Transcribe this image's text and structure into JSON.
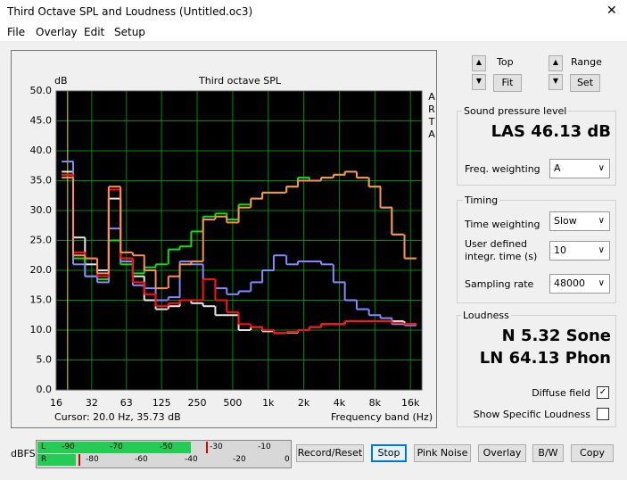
{
  "window": {
    "title": "Third Octave SPL and Loudness (Untitled.oc3)"
  },
  "menu": [
    "File",
    "Overlay",
    "Edit",
    "Setup"
  ],
  "chart_data": {
    "type": "step",
    "title": "Third octave SPL",
    "y_label": "dB",
    "x_label": "Frequency band (Hz)",
    "side_label": [
      "A",
      "R",
      "T",
      "A"
    ],
    "cursor": "Cursor:    20.0 Hz, 35.73 dB",
    "x_scale": "log",
    "grid": true,
    "background": "#000000",
    "grid_color": "#008a00",
    "cursor_color": "#e8e800",
    "x": [
      20,
      25,
      31.5,
      40,
      50,
      63,
      80,
      100,
      125,
      160,
      200,
      250,
      315,
      400,
      500,
      630,
      800,
      1000,
      1250,
      1600,
      2000,
      2500,
      3150,
      4000,
      5000,
      6300,
      8000,
      10000,
      12500,
      16000
    ],
    "xlim": [
      16,
      20000
    ],
    "xticks": [
      16,
      32,
      63,
      125,
      250,
      500,
      {
        "value": 1000,
        "label": "1k"
      },
      {
        "value": 2000,
        "label": "2k"
      },
      {
        "value": 4000,
        "label": "4k"
      },
      {
        "value": 8000,
        "label": "8k"
      },
      {
        "value": 16000,
        "label": "16k"
      }
    ],
    "ylim": [
      0,
      50
    ],
    "yticks": [
      {
        "value": 0,
        "label": "0.0"
      },
      {
        "value": 5,
        "label": "5.0"
      },
      {
        "value": 10,
        "label": "10.0"
      },
      {
        "value": 15,
        "label": "15.0"
      },
      {
        "value": 20,
        "label": "20.0"
      },
      {
        "value": 25,
        "label": "25.0"
      },
      {
        "value": 30,
        "label": "30.0"
      },
      {
        "value": 35,
        "label": "35.0"
      },
      {
        "value": 40,
        "label": "40.0"
      },
      {
        "value": 45,
        "label": "45.0"
      },
      {
        "value": 50,
        "label": "50.0"
      }
    ],
    "series": [
      {
        "color": "#e6e6e6",
        "values": [
          36.5,
          25.5,
          21,
          20,
          32,
          22,
          19,
          15,
          13.5,
          14,
          15,
          14.5,
          14,
          12.5,
          12.5,
          10,
          10.5,
          9.8,
          9.5,
          9.6,
          10,
          10.5,
          11,
          11,
          11.5,
          11.5,
          11.5,
          11.5,
          11.5,
          11
        ]
      },
      {
        "color": "#10e010",
        "values": [
          36,
          22,
          19,
          18.5,
          25,
          21,
          19.5,
          20.5,
          21,
          23.5,
          24,
          26.5,
          29,
          29.5,
          28.5,
          31,
          32,
          33,
          33,
          34,
          35.5,
          35,
          35.5,
          36,
          36.5,
          35.5,
          34,
          30.5,
          26,
          22
        ]
      },
      {
        "color": "#8888ff",
        "values": [
          38.2,
          21,
          19,
          18,
          27,
          21.5,
          17.5,
          17,
          15,
          15.5,
          21.5,
          21,
          18.5,
          17,
          16,
          16.5,
          18,
          20,
          22.5,
          21,
          21.5,
          21.5,
          21,
          18,
          15,
          13.5,
          12.5,
          12,
          11,
          10.8
        ]
      },
      {
        "color": "#ff1010",
        "values": [
          36,
          23,
          22,
          19,
          33.5,
          22,
          18,
          16,
          14,
          14.5,
          15,
          15,
          18.5,
          15,
          13,
          11,
          10.5,
          10,
          9.5,
          9.7,
          10,
          10.5,
          11,
          11,
          11.5,
          11.5,
          11.5,
          11.5,
          11.2,
          11
        ]
      },
      {
        "color": "#ff9050",
        "values": [
          35.5,
          22.5,
          22,
          19.5,
          34,
          23,
          22.5,
          20,
          17,
          19,
          21,
          21.5,
          28.5,
          29,
          28,
          30.5,
          32,
          33,
          33,
          34,
          35,
          35,
          35.5,
          36,
          36.5,
          35.5,
          34,
          30.5,
          26,
          22
        ]
      }
    ]
  },
  "range_controls": {
    "top_label": "Top",
    "fit": "Fit",
    "range_label": "Range",
    "set": "Set"
  },
  "spl": {
    "heading": "Sound pressure level",
    "reading": "LAS 46.13 dB",
    "weighting_label": "Freq. weighting",
    "weighting": "A"
  },
  "timing": {
    "heading": "Timing",
    "time_weighting_label": "Time weighting",
    "time_weighting": "Slow",
    "integr_label": [
      "User defined",
      "integr. time (s)"
    ],
    "integr_time": "10",
    "sampling_label": "Sampling rate",
    "sampling_rate": "48000"
  },
  "loudness": {
    "heading": "Loudness",
    "sone": "N 5.32 Sone",
    "phon": "LN 64.13 Phon",
    "diffuse": "Diffuse field",
    "specific": "Show Specific Loudness"
  },
  "meter": {
    "label": "dBFS",
    "left": [
      "L",
      "-90",
      "-70",
      "-50",
      "-30",
      "-10"
    ],
    "right": [
      "R",
      "-80",
      "-60",
      "-40",
      "-20",
      "0"
    ]
  },
  "buttons": [
    "Record/Reset",
    "Stop",
    "Pink Noise",
    "Overlay",
    "B/W",
    "Copy"
  ]
}
